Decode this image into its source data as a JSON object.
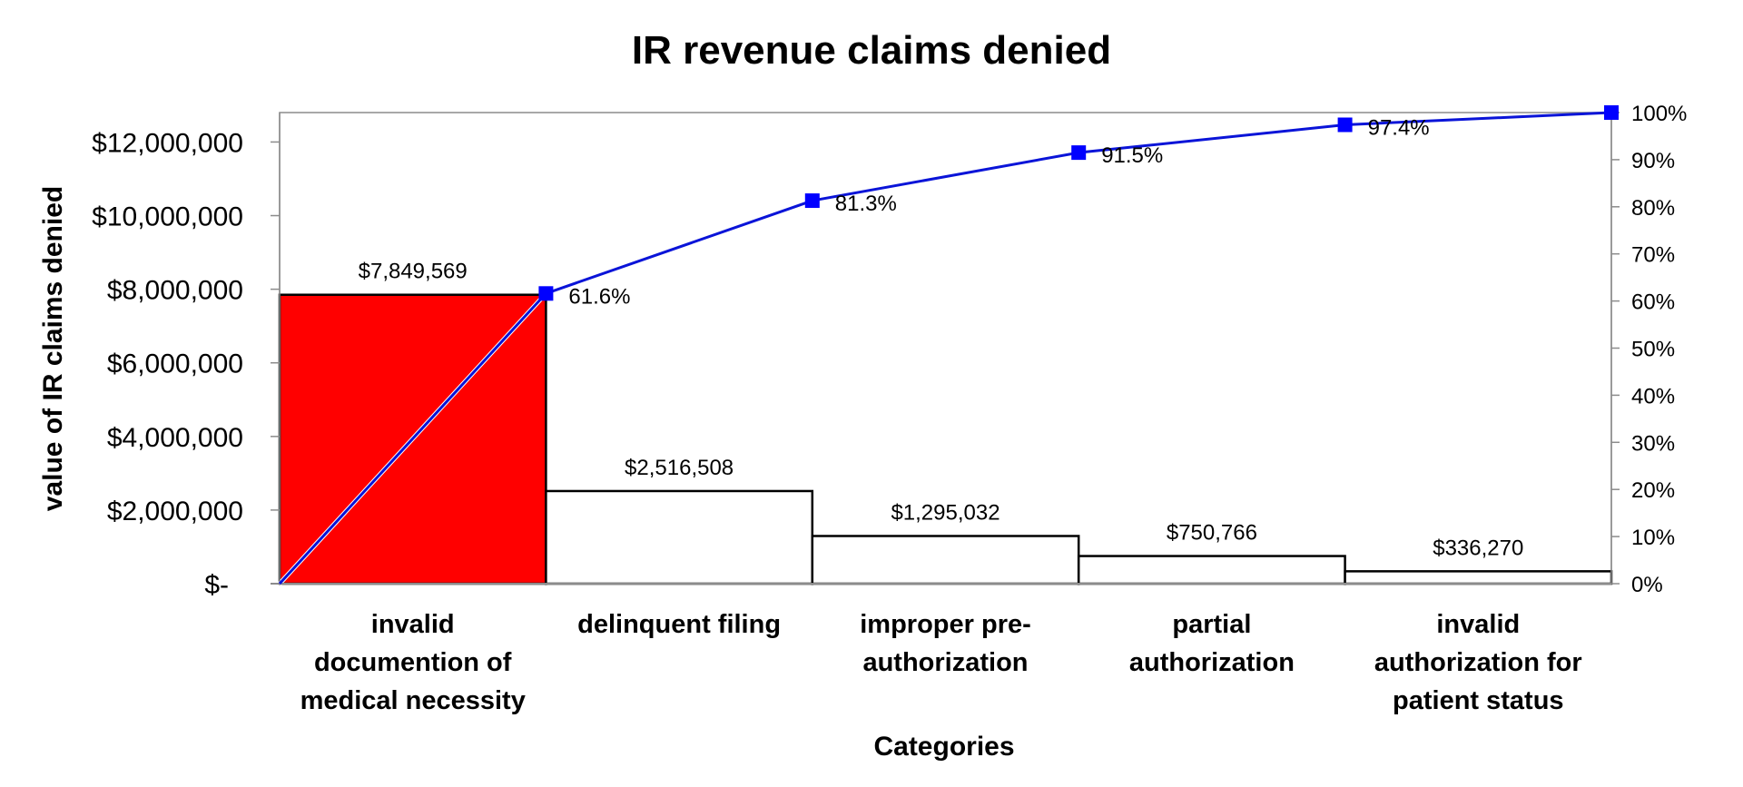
{
  "chart_data": {
    "type": "bar",
    "title": "IR revenue claims denied",
    "xlabel": "Categories",
    "ylabel": "value of IR claims denied",
    "categories": [
      [
        "invalid",
        "documention of",
        "medical necessity"
      ],
      [
        "delinquent filing"
      ],
      [
        "improper pre-",
        "authorization"
      ],
      [
        "partial",
        "authorization"
      ],
      [
        "invalid",
        "authorization for",
        "patient status"
      ]
    ],
    "values": [
      7849569,
      2516508,
      1295032,
      750766,
      336270
    ],
    "value_labels": [
      "$7,849,569",
      "$2,516,508",
      "$1,295,032",
      "$750,766",
      "$336,270"
    ],
    "ylim": [
      0,
      12800000
    ],
    "yticks": [
      0,
      2000000,
      4000000,
      6000000,
      8000000,
      10000000,
      12000000
    ],
    "ytick_labels": [
      "$-",
      "$2,000,000",
      "$4,000,000",
      "$6,000,000",
      "$8,000,000",
      "$10,000,000",
      "$12,000,000"
    ],
    "y2lim": [
      0,
      1
    ],
    "y2ticks": [
      0,
      0.1,
      0.2,
      0.3,
      0.4,
      0.5,
      0.6,
      0.7,
      0.8,
      0.9,
      1.0
    ],
    "y2tick_labels": [
      "0%",
      "10%",
      "20%",
      "30%",
      "40%",
      "50%",
      "60%",
      "70%",
      "80%",
      "90%",
      "100%"
    ],
    "cumulative": [
      0,
      0.616,
      0.813,
      0.915,
      0.974,
      1.0
    ],
    "cumulative_labels": [
      "",
      "61.6%",
      "81.3%",
      "91.5%",
      "97.4%",
      ""
    ],
    "highlight_index": 0,
    "colors": {
      "highlight_bar": "#ff0000",
      "bar_fill": "#ffffff",
      "bar_stroke": "#000000",
      "cumulative_line": "#0a14d8",
      "cumulative_marker": "#0000ff",
      "diagonal": "#ffffff"
    },
    "grid": false,
    "legend": "none"
  }
}
